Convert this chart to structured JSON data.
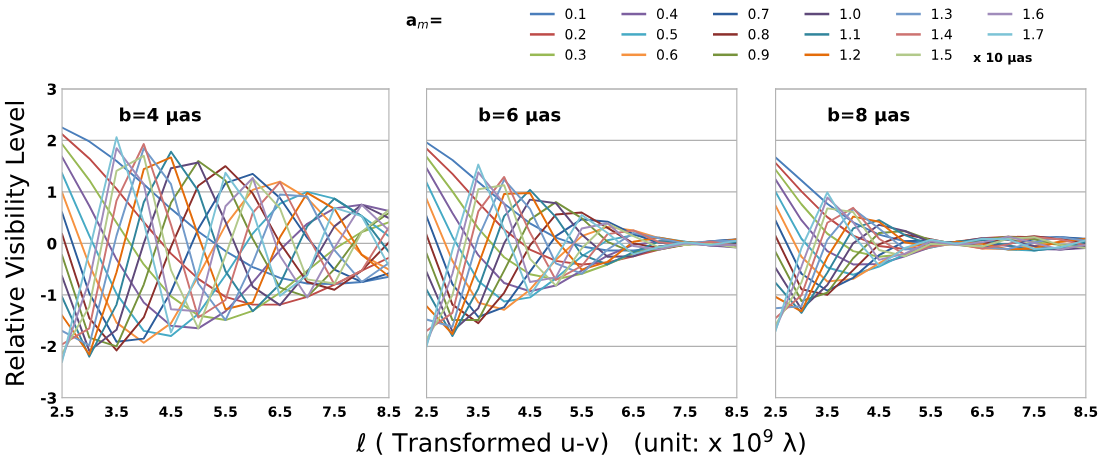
{
  "chart_data": [
    {
      "type": "line",
      "title": "b=4 μas",
      "ylabel": "Relative Visibility Level",
      "legend_title": "a$_{m}$=",
      "annotations": [
        "x 10 μas"
      ],
      "legend": "top right",
      "grid": "y",
      "xlim": [
        2.5,
        8.5
      ],
      "xticks": [
        2.5,
        3.5,
        4.5,
        5.5,
        6.5,
        7.5,
        8.5
      ],
      "ylim": [
        -3,
        3
      ],
      "yticks": [
        -3,
        -2,
        -1,
        0,
        1,
        2,
        3
      ],
      "x": [
        2.5,
        3.0,
        3.5,
        4.0,
        4.5,
        5.0,
        5.5,
        6.0,
        6.5,
        7.0,
        7.5,
        8.0,
        8.5
      ],
      "series": [
        {
          "name": "0.1",
          "color": "#4a7ebb",
          "values": [
            2.25,
            1.98,
            1.6,
            1.15,
            0.67,
            0.23,
            -0.15,
            -0.46,
            -0.67,
            -0.78,
            -0.79,
            -0.75,
            -0.65
          ]
        },
        {
          "name": "0.2",
          "color": "#be4b48",
          "values": [
            2.12,
            1.65,
            1.06,
            0.41,
            -0.2,
            -0.69,
            -1.04,
            -1.19,
            -1.19,
            -1.04,
            -0.8,
            -0.53,
            -0.28
          ]
        },
        {
          "name": "0.3",
          "color": "#98b954",
          "values": [
            1.93,
            1.23,
            0.4,
            -0.41,
            -1.03,
            -1.4,
            -1.49,
            -1.31,
            -0.96,
            -0.53,
            -0.11,
            0.22,
            0.41
          ]
        },
        {
          "name": "0.4",
          "color": "#7d60a0",
          "values": [
            1.68,
            0.73,
            -0.31,
            -1.15,
            -1.6,
            -1.65,
            -1.32,
            -0.76,
            -0.13,
            0.38,
            0.68,
            0.75,
            0.63
          ]
        },
        {
          "name": "0.5",
          "color": "#46aac5",
          "values": [
            1.36,
            0.15,
            -0.98,
            -1.7,
            -1.8,
            -1.37,
            -0.62,
            0.19,
            0.77,
            1.0,
            0.87,
            0.53,
            0.14
          ]
        },
        {
          "name": "0.6",
          "color": "#f69240",
          "values": [
            0.99,
            -0.42,
            -1.54,
            -1.93,
            -1.55,
            -0.64,
            0.35,
            1.04,
            1.2,
            0.88,
            0.32,
            -0.22,
            -0.51
          ]
        },
        {
          "name": "0.7",
          "color": "#2c5d9c",
          "values": [
            0.6,
            -0.97,
            -1.91,
            -1.85,
            -0.94,
            0.28,
            1.17,
            1.35,
            0.88,
            0.11,
            -0.51,
            -0.75,
            -0.58
          ]
        },
        {
          "name": "0.8",
          "color": "#8c2f2c",
          "values": [
            0.18,
            -1.45,
            -2.08,
            -1.44,
            -0.07,
            1.12,
            1.5,
            0.97,
            0.01,
            -0.75,
            -0.9,
            -0.53,
            0.02
          ]
        },
        {
          "name": "0.9",
          "color": "#77933c",
          "values": [
            -0.23,
            -1.83,
            -2.0,
            -0.8,
            0.79,
            1.6,
            1.22,
            0.09,
            -0.86,
            -1.04,
            -0.5,
            0.22,
            0.59
          ]
        },
        {
          "name": "1.0",
          "color": "#5f497a",
          "values": [
            -0.64,
            -2.09,
            -1.68,
            0.0,
            1.46,
            1.57,
            0.42,
            -0.84,
            -1.2,
            -0.57,
            0.33,
            0.75,
            0.49
          ]
        },
        {
          "name": "1.1",
          "color": "#31859c",
          "values": [
            -1.04,
            -2.2,
            -1.19,
            0.8,
            1.78,
            1.02,
            -0.54,
            -1.32,
            -0.79,
            0.33,
            0.87,
            0.53,
            -0.17
          ]
        },
        {
          "name": "1.2",
          "color": "#e46c0a",
          "values": [
            -1.4,
            -2.16,
            -0.56,
            1.44,
            1.67,
            0.15,
            -1.28,
            -1.15,
            0.12,
            0.98,
            0.67,
            -0.22,
            -0.64
          ]
        },
        {
          "name": "1.3",
          "color": "#729aca",
          "values": [
            -1.7,
            -1.98,
            0.15,
            1.85,
            1.15,
            -0.78,
            -1.49,
            -0.38,
            0.95,
            0.91,
            -0.13,
            -0.75,
            -0.38
          ]
        },
        {
          "name": "1.4",
          "color": "#cd7371",
          "values": [
            -1.96,
            -1.65,
            0.83,
            1.93,
            0.36,
            -1.44,
            -1.1,
            0.59,
            1.19,
            0.17,
            -0.8,
            -0.53,
            0.31
          ]
        },
        {
          "name": "1.5",
          "color": "#b2c98a",
          "values": [
            -2.14,
            -1.23,
            1.41,
            1.7,
            -0.52,
            -1.65,
            -0.24,
            1.26,
            0.68,
            -0.7,
            -0.78,
            0.22,
            0.65
          ]
        },
        {
          "name": "1.6",
          "color": "#a08cbb",
          "values": [
            -2.25,
            -0.73,
            1.85,
            1.15,
            -1.28,
            -1.32,
            0.72,
            1.27,
            -0.24,
            -1.05,
            -0.09,
            0.75,
            0.25
          ]
        },
        {
          "name": "1.7",
          "color": "#7cc3d6",
          "values": [
            -2.3,
            -0.15,
            2.06,
            0.41,
            -1.73,
            -0.56,
            1.37,
            0.63,
            -1.02,
            -0.62,
            0.69,
            0.53,
            -0.44
          ]
        }
      ]
    },
    {
      "type": "line",
      "title": "b=6 μas",
      "xlabel": "ℓ ( Transformed u-v)   (unit: x 10$^{9}$ λ)",
      "grid": "y",
      "tick_labels": "x",
      "xlim": [
        2.5,
        8.5
      ],
      "xticks": [
        2.5,
        3.5,
        4.5,
        5.5,
        6.5,
        7.5,
        8.5
      ],
      "ylim": [
        -3,
        3
      ],
      "yticks": [
        -3,
        -2,
        -1,
        0,
        1,
        2,
        3
      ],
      "x": [
        2.5,
        3.0,
        3.5,
        4.0,
        4.5,
        5.0,
        5.5,
        6.0,
        6.5,
        7.0,
        7.5,
        8.0,
        8.5
      ],
      "series": [
        {
          "color": "#4a7ebb",
          "values": [
            1.96,
            1.62,
            1.19,
            0.77,
            0.39,
            0.11,
            -0.06,
            -0.14,
            -0.14,
            -0.09,
            -0.03,
            0.04,
            0.08
          ]
        },
        {
          "color": "#be4b48",
          "values": [
            1.84,
            1.35,
            0.79,
            0.27,
            -0.12,
            -0.34,
            -0.41,
            -0.37,
            -0.25,
            -0.12,
            -0.03,
            0.03,
            0.03
          ]
        },
        {
          "color": "#98b954",
          "values": [
            1.68,
            1.01,
            0.29,
            -0.27,
            -0.6,
            -0.7,
            -0.59,
            -0.41,
            -0.2,
            -0.06,
            0.0,
            -0.01,
            -0.05
          ]
        },
        {
          "color": "#7d60a0",
          "values": [
            1.46,
            0.59,
            -0.23,
            -0.77,
            -0.93,
            -0.82,
            -0.53,
            -0.24,
            -0.03,
            0.04,
            0.02,
            -0.04,
            -0.08
          ]
        },
        {
          "color": "#46aac5",
          "values": [
            1.18,
            0.13,
            -0.73,
            -1.13,
            -1.05,
            -0.68,
            -0.25,
            0.06,
            0.16,
            0.11,
            0.03,
            -0.03,
            -0.02
          ]
        },
        {
          "color": "#f69240",
          "values": [
            0.86,
            -0.34,
            -1.15,
            -1.29,
            -0.9,
            -0.32,
            0.14,
            0.32,
            0.25,
            0.1,
            0.01,
            0.01,
            0.06
          ]
        },
        {
          "color": "#2c5d9c",
          "values": [
            0.52,
            -0.79,
            -1.43,
            -1.24,
            -0.55,
            0.14,
            0.47,
            0.42,
            0.18,
            0.01,
            -0.02,
            0.04,
            0.07
          ]
        },
        {
          "color": "#8c2f2c",
          "values": [
            0.16,
            -1.19,
            -1.55,
            -0.96,
            -0.04,
            0.56,
            0.6,
            0.3,
            0.0,
            -0.09,
            -0.03,
            0.03,
            0.0
          ]
        },
        {
          "color": "#77933c",
          "values": [
            -0.2,
            -1.49,
            -1.49,
            -0.53,
            0.46,
            0.8,
            0.49,
            0.03,
            -0.18,
            -0.12,
            -0.02,
            -0.01,
            -0.07
          ]
        },
        {
          "color": "#5f497a",
          "values": [
            -0.56,
            -1.71,
            -1.26,
            0.0,
            0.85,
            0.78,
            0.17,
            -0.26,
            -0.25,
            -0.06,
            0.01,
            -0.04,
            -0.06
          ]
        },
        {
          "color": "#31859c",
          "values": [
            -0.9,
            -1.8,
            -0.88,
            0.53,
            1.04,
            0.51,
            -0.22,
            -0.41,
            -0.17,
            0.04,
            0.03,
            -0.03,
            0.02
          ]
        },
        {
          "color": "#e46c0a",
          "values": [
            -1.22,
            -1.76,
            -0.42,
            0.96,
            0.98,
            0.07,
            -0.51,
            -0.36,
            0.03,
            0.11,
            0.02,
            0.01,
            0.08
          ]
        },
        {
          "color": "#729aca",
          "values": [
            -1.48,
            -1.62,
            0.11,
            1.24,
            0.67,
            -0.39,
            -0.59,
            -0.12,
            0.2,
            0.1,
            0.0,
            0.04,
            0.05
          ]
        },
        {
          "color": "#cd7371",
          "values": [
            -1.7,
            -1.35,
            0.62,
            1.29,
            0.21,
            -0.71,
            -0.44,
            0.18,
            0.25,
            0.02,
            -0.03,
            0.03,
            -0.04
          ]
        },
        {
          "color": "#b2c98a",
          "values": [
            -1.86,
            -1.01,
            1.05,
            1.13,
            -0.3,
            -0.82,
            -0.1,
            0.39,
            0.14,
            -0.08,
            -0.03,
            -0.01,
            -0.08
          ]
        },
        {
          "color": "#a08cbb",
          "values": [
            -1.96,
            -0.59,
            1.38,
            0.77,
            -0.75,
            -0.66,
            0.29,
            0.39,
            -0.05,
            -0.12,
            0.0,
            -0.04,
            -0.03
          ]
        },
        {
          "color": "#7cc3d6",
          "values": [
            -2.0,
            -0.13,
            1.53,
            0.27,
            -1.01,
            -0.28,
            0.55,
            0.2,
            -0.21,
            -0.07,
            0.02,
            -0.03,
            0.05
          ]
        }
      ]
    },
    {
      "type": "line",
      "title": "b=8 μas",
      "grid": "y",
      "tick_labels": "x",
      "xlim": [
        2.5,
        8.5
      ],
      "xticks": [
        2.5,
        3.5,
        4.5,
        5.5,
        6.5,
        7.5,
        8.5
      ],
      "ylim": [
        -3,
        3
      ],
      "yticks": [
        -3,
        -2,
        -1,
        0,
        1,
        2,
        3
      ],
      "x": [
        2.5,
        3.0,
        3.5,
        4.0,
        4.5,
        5.0,
        5.5,
        6.0,
        6.5,
        7.0,
        7.5,
        8.0,
        8.5
      ],
      "series": [
        {
          "color": "#4a7ebb",
          "values": [
            1.67,
            1.22,
            0.77,
            0.41,
            0.17,
            0.04,
            -0.01,
            0.01,
            0.06,
            0.1,
            0.12,
            0.12,
            0.09
          ]
        },
        {
          "color": "#be4b48",
          "values": [
            1.56,
            1.01,
            0.51,
            0.15,
            -0.05,
            -0.11,
            -0.06,
            0.03,
            0.1,
            0.13,
            0.12,
            0.08,
            0.04
          ]
        },
        {
          "color": "#98b954",
          "values": [
            1.43,
            0.76,
            0.19,
            -0.15,
            -0.26,
            -0.21,
            -0.08,
            0.03,
            0.08,
            0.07,
            0.02,
            -0.03,
            -0.06
          ]
        },
        {
          "color": "#7d60a0",
          "values": [
            1.24,
            0.45,
            -0.15,
            -0.41,
            -0.4,
            -0.25,
            -0.07,
            0.02,
            0.01,
            -0.05,
            -0.11,
            -0.12,
            -0.09
          ]
        },
        {
          "color": "#46aac5",
          "values": [
            1.0,
            0.09,
            -0.47,
            -0.61,
            -0.45,
            -0.21,
            -0.03,
            0.0,
            -0.06,
            -0.12,
            -0.14,
            -0.08,
            -0.02
          ]
        },
        {
          "color": "#f69240",
          "values": [
            0.73,
            -0.26,
            -0.74,
            -0.69,
            -0.39,
            -0.1,
            0.02,
            -0.02,
            -0.1,
            -0.11,
            -0.05,
            0.03,
            0.07
          ]
        },
        {
          "color": "#2c5d9c",
          "values": [
            0.44,
            -0.59,
            -0.92,
            -0.67,
            -0.23,
            0.04,
            0.06,
            -0.03,
            -0.07,
            -0.01,
            0.08,
            0.12,
            0.08
          ]
        },
        {
          "color": "#8c2f2c",
          "values": [
            0.14,
            -0.89,
            -1.0,
            -0.52,
            -0.02,
            0.17,
            0.08,
            -0.02,
            0.0,
            0.09,
            0.14,
            0.08,
            0.0
          ]
        },
        {
          "color": "#77933c",
          "values": [
            -0.17,
            -1.12,
            -0.96,
            -0.29,
            0.2,
            0.24,
            0.06,
            0.0,
            0.07,
            0.13,
            0.08,
            -0.03,
            -0.08
          ]
        },
        {
          "color": "#5f497a",
          "values": [
            -0.48,
            -1.28,
            -0.81,
            0.0,
            0.36,
            0.24,
            0.02,
            0.02,
            0.1,
            0.07,
            -0.05,
            -0.12,
            -0.07
          ]
        },
        {
          "color": "#31859c",
          "values": [
            -0.77,
            -1.35,
            -0.57,
            0.29,
            0.45,
            0.16,
            -0.03,
            0.03,
            0.07,
            -0.04,
            -0.14,
            -0.08,
            0.02
          ]
        },
        {
          "color": "#e46c0a",
          "values": [
            -1.04,
            -1.32,
            -0.27,
            0.52,
            0.42,
            0.02,
            -0.07,
            0.03,
            -0.01,
            -0.12,
            -0.1,
            0.03,
            0.09
          ]
        },
        {
          "color": "#729aca",
          "values": [
            -1.26,
            -1.22,
            0.07,
            0.67,
            0.29,
            -0.12,
            -0.08,
            0.01,
            -0.08,
            -0.11,
            0.02,
            0.12,
            0.05
          ]
        },
        {
          "color": "#cd7371",
          "values": [
            -1.45,
            -1.01,
            0.4,
            0.69,
            0.09,
            -0.22,
            -0.06,
            -0.01,
            -0.1,
            -0.02,
            0.12,
            0.08,
            -0.04
          ]
        },
        {
          "color": "#b2c98a",
          "values": [
            -1.58,
            -0.76,
            0.68,
            0.61,
            -0.13,
            -0.25,
            -0.01,
            -0.03,
            -0.06,
            0.09,
            0.12,
            -0.03,
            -0.09
          ]
        },
        {
          "color": "#a08cbb",
          "values": [
            -1.67,
            -0.45,
            0.89,
            0.41,
            -0.32,
            -0.2,
            0.04,
            -0.03,
            0.02,
            0.13,
            0.01,
            -0.12,
            -0.03
          ]
        },
        {
          "color": "#7cc3d6",
          "values": [
            -1.7,
            -0.09,
            0.99,
            0.15,
            -0.43,
            -0.09,
            0.07,
            -0.01,
            0.09,
            0.08,
            -0.11,
            -0.08,
            0.06
          ]
        }
      ]
    }
  ]
}
